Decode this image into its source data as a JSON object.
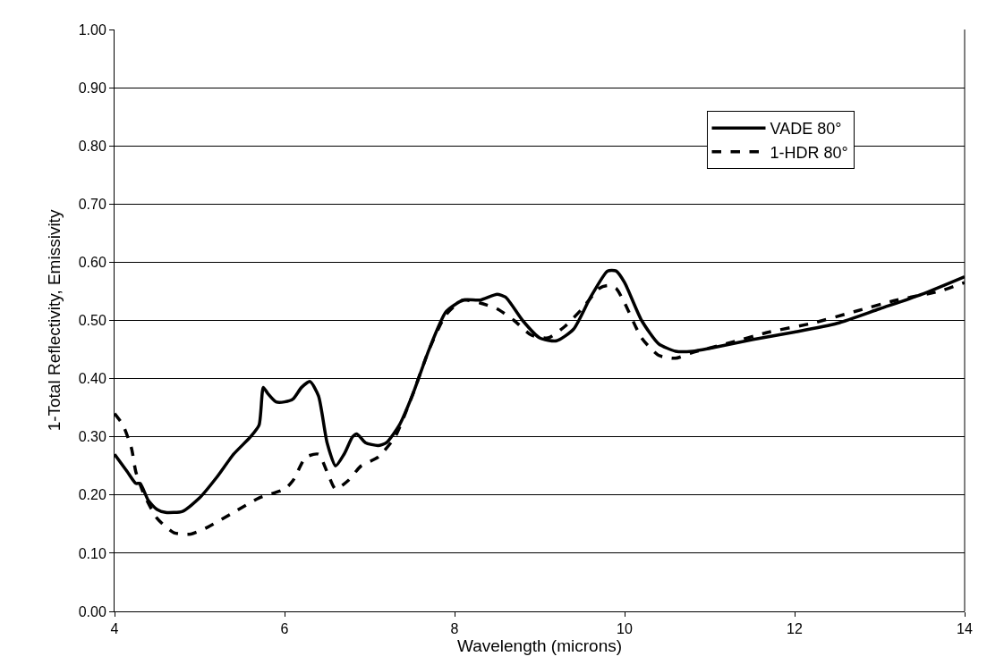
{
  "chart_data": {
    "type": "line",
    "xlabel": "Wavelength (microns)",
    "ylabel": "1-Total Reflectivity, Emissivity",
    "xlim": [
      4,
      14
    ],
    "xticks": [
      4,
      6,
      8,
      10,
      12,
      14
    ],
    "ylim": [
      0,
      1
    ],
    "yticks": [
      {
        "value": 0,
        "label": "0.00"
      },
      {
        "value": 0.1,
        "label": "0.10"
      },
      {
        "value": 0.2,
        "label": "0.20"
      },
      {
        "value": 0.3,
        "label": "0.30"
      },
      {
        "value": 0.4,
        "label": "0.40"
      },
      {
        "value": 0.5,
        "label": "0.50"
      },
      {
        "value": 0.6,
        "label": "0.60"
      },
      {
        "value": 0.7,
        "label": "0.70"
      },
      {
        "value": 0.8,
        "label": "0.80"
      },
      {
        "value": 0.9,
        "label": "0.90"
      },
      {
        "value": 1,
        "label": "1.00"
      }
    ],
    "grid": "y",
    "legend": "top right",
    "marker": "none",
    "series": [
      {
        "name": "VADE 80°",
        "color": "#000000",
        "line_style": "solid",
        "x": [
          4.0,
          4.15,
          4.25,
          4.3,
          4.4,
          4.5,
          4.6,
          4.8,
          5.0,
          5.2,
          5.4,
          5.6,
          5.7,
          5.75,
          5.8,
          5.9,
          6.0,
          6.1,
          6.2,
          6.3,
          6.4,
          6.5,
          6.6,
          6.7,
          6.8,
          6.85,
          6.95,
          7.1,
          7.2,
          7.35,
          7.5,
          7.7,
          7.9,
          8.1,
          8.3,
          8.5,
          8.6,
          8.8,
          9.0,
          9.2,
          9.4,
          9.6,
          9.8,
          9.9,
          10.0,
          10.2,
          10.4,
          10.6,
          10.8,
          11.0,
          11.5,
          12.0,
          12.5,
          13.0,
          13.5,
          14.0
        ],
        "values": [
          0.27,
          0.24,
          0.22,
          0.22,
          0.19,
          0.175,
          0.17,
          0.172,
          0.195,
          0.23,
          0.27,
          0.3,
          0.32,
          0.385,
          0.375,
          0.36,
          0.36,
          0.365,
          0.385,
          0.395,
          0.37,
          0.29,
          0.25,
          0.27,
          0.3,
          0.305,
          0.29,
          0.285,
          0.29,
          0.32,
          0.37,
          0.45,
          0.515,
          0.535,
          0.535,
          0.545,
          0.54,
          0.5,
          0.47,
          0.465,
          0.485,
          0.54,
          0.585,
          0.585,
          0.565,
          0.5,
          0.46,
          0.447,
          0.447,
          0.452,
          0.467,
          0.48,
          0.495,
          0.52,
          0.545,
          0.575
        ]
      },
      {
        "name": "1-HDR 80°",
        "color": "#000000",
        "line_style": "dashed",
        "x": [
          4.0,
          4.1,
          4.2,
          4.25,
          4.35,
          4.5,
          4.7,
          4.9,
          5.1,
          5.4,
          5.7,
          6.0,
          6.1,
          6.25,
          6.4,
          6.5,
          6.6,
          6.75,
          6.9,
          7.1,
          7.3,
          7.5,
          7.7,
          7.9,
          8.1,
          8.3,
          8.5,
          8.7,
          8.9,
          9.1,
          9.3,
          9.5,
          9.7,
          9.8,
          9.9,
          10.0,
          10.2,
          10.4,
          10.6,
          10.8,
          11.2,
          11.7,
          12.2,
          12.7,
          13.2,
          13.7,
          14.0
        ],
        "values": [
          0.34,
          0.32,
          0.28,
          0.24,
          0.2,
          0.16,
          0.135,
          0.133,
          0.145,
          0.17,
          0.195,
          0.21,
          0.225,
          0.265,
          0.27,
          0.24,
          0.21,
          0.225,
          0.25,
          0.265,
          0.3,
          0.37,
          0.45,
          0.51,
          0.535,
          0.53,
          0.52,
          0.5,
          0.475,
          0.47,
          0.49,
          0.52,
          0.555,
          0.56,
          0.555,
          0.53,
          0.47,
          0.44,
          0.435,
          0.445,
          0.46,
          0.48,
          0.495,
          0.515,
          0.535,
          0.55,
          0.565
        ]
      }
    ]
  }
}
